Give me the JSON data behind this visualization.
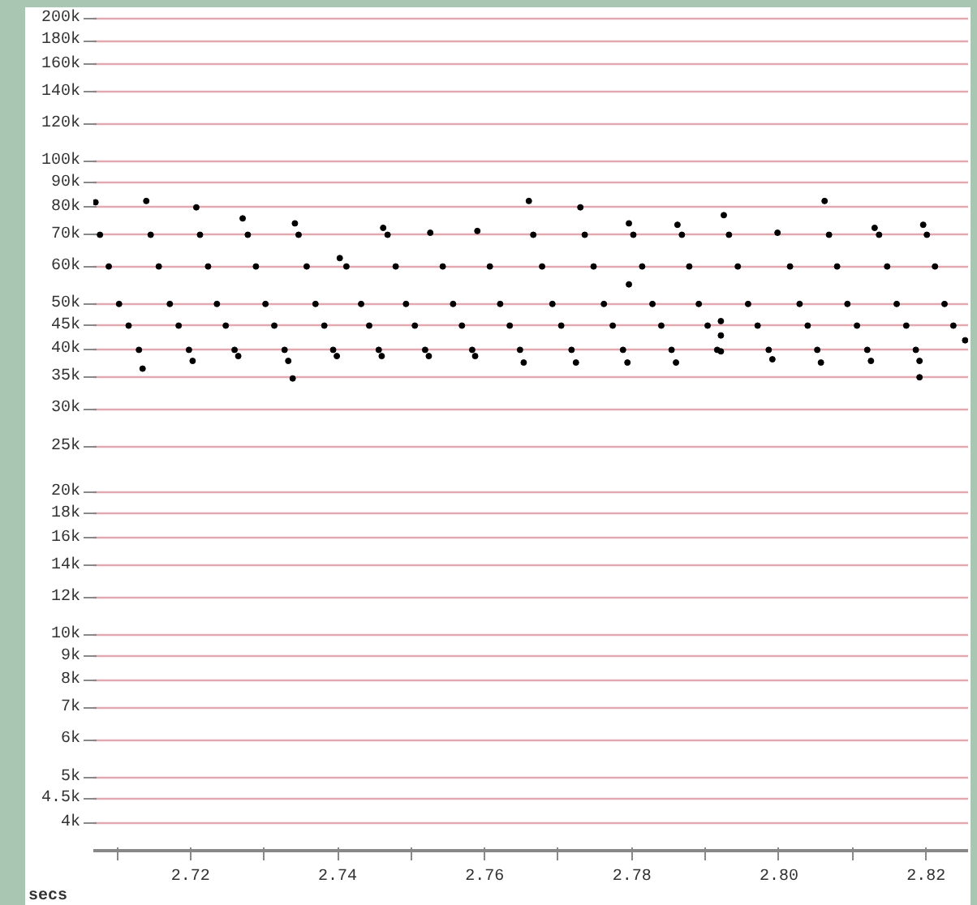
{
  "chart_data": {
    "type": "scatter",
    "xlabel": "secs",
    "log": "y",
    "grid": "y",
    "marker": "circle",
    "xlim": [
      2.7068,
      2.8257
    ],
    "ylim": [
      3500,
      210000
    ],
    "xticks": [
      {
        "value": 2.71,
        "label": null
      },
      2.72,
      {
        "value": 2.73,
        "label": null
      },
      2.74,
      {
        "value": 2.75,
        "label": null
      },
      2.76,
      {
        "value": 2.77,
        "label": null
      },
      2.78,
      {
        "value": 2.79,
        "label": null
      },
      {
        "value": 2.8,
        "label": "2.80"
      },
      {
        "value": 2.81,
        "label": null
      },
      2.82
    ],
    "yticks": [
      {
        "value": 4000,
        "label": "4k"
      },
      {
        "value": 4500,
        "label": "4.5k"
      },
      {
        "value": 5000,
        "label": "5k"
      },
      {
        "value": 6000,
        "label": "6k"
      },
      {
        "value": 7000,
        "label": "7k"
      },
      {
        "value": 8000,
        "label": "8k"
      },
      {
        "value": 9000,
        "label": "9k"
      },
      {
        "value": 10000,
        "label": "10k"
      },
      {
        "value": 12000,
        "label": "12k"
      },
      {
        "value": 14000,
        "label": "14k"
      },
      {
        "value": 16000,
        "label": "16k"
      },
      {
        "value": 18000,
        "label": "18k"
      },
      {
        "value": 20000,
        "label": "20k"
      },
      {
        "value": 25000,
        "label": "25k"
      },
      {
        "value": 30000,
        "label": "30k"
      },
      {
        "value": 35000,
        "label": "35k"
      },
      {
        "value": 40000,
        "label": "40k"
      },
      {
        "value": 45000,
        "label": "45k"
      },
      {
        "value": 50000,
        "label": "50k"
      },
      {
        "value": 60000,
        "label": "60k"
      },
      {
        "value": 70000,
        "label": "70k"
      },
      {
        "value": 80000,
        "label": "80k"
      },
      {
        "value": 90000,
        "label": "90k"
      },
      {
        "value": 100000,
        "label": "100k"
      },
      {
        "value": 120000,
        "label": "120k"
      },
      {
        "value": 140000,
        "label": "140k"
      },
      {
        "value": 160000,
        "label": "160k"
      },
      {
        "value": 180000,
        "label": "180k"
      },
      {
        "value": 200000,
        "label": "200k"
      }
    ],
    "series": [
      {
        "color": "#000000",
        "x": [
          2.7071,
          2.7077,
          2.7089,
          2.7103,
          2.7116,
          2.713,
          2.7135,
          2.714,
          2.7146,
          2.7157,
          2.7172,
          2.7184,
          2.7198,
          2.7203,
          2.7208,
          2.7213,
          2.7224,
          2.7236,
          2.7248,
          2.726,
          2.7265,
          2.7271,
          2.7278,
          2.7289,
          2.7302,
          2.7314,
          2.7328,
          2.7333,
          2.7342,
          2.7347,
          2.7358,
          2.737,
          2.7382,
          2.7394,
          2.7399,
          2.7339,
          2.7403,
          2.7412,
          2.7432,
          2.7443,
          2.7456,
          2.746,
          2.7462,
          2.7468,
          2.7479,
          2.7493,
          2.7505,
          2.7519,
          2.7524,
          2.7526,
          2.7543,
          2.7557,
          2.7569,
          2.7583,
          2.7587,
          2.759,
          2.7607,
          2.7621,
          2.7634,
          2.7648,
          2.7653,
          2.766,
          2.7666,
          2.7678,
          2.7692,
          2.7704,
          2.7718,
          2.7724,
          2.773,
          2.7736,
          2.7748,
          2.7762,
          2.7774,
          2.7788,
          2.7794,
          2.7796,
          2.7802,
          2.7814,
          2.7828,
          2.784,
          2.7854,
          2.786,
          2.7796,
          2.7862,
          2.7868,
          2.7878,
          2.7891,
          2.7903,
          2.7916,
          2.7921,
          2.7921,
          2.7921,
          2.7925,
          2.7932,
          2.7944,
          2.7958,
          2.7971,
          2.7986,
          2.7991,
          2.7998,
          2.8015,
          2.8028,
          2.8039,
          2.8052,
          2.8057,
          2.8062,
          2.8068,
          2.8079,
          2.8093,
          2.8106,
          2.812,
          2.8125,
          2.813,
          2.8136,
          2.8147,
          2.816,
          2.8173,
          2.8186,
          2.8191,
          2.8191,
          2.8196,
          2.8201,
          2.8212,
          2.8225,
          2.8237,
          2.8253
        ],
        "values": [
          82000,
          70000,
          60000,
          50000,
          45000,
          40000,
          36500,
          82500,
          70000,
          60000,
          50000,
          45000,
          40000,
          37900,
          80000,
          70000,
          60000,
          50000,
          45000,
          40000,
          38800,
          75800,
          70000,
          60000,
          50000,
          45000,
          40000,
          37900,
          74000,
          70000,
          60000,
          50000,
          45000,
          40000,
          38800,
          34800,
          62500,
          60000,
          50000,
          45000,
          40000,
          38800,
          72400,
          70000,
          60000,
          50000,
          45000,
          40000,
          38800,
          70700,
          60000,
          50000,
          45000,
          40000,
          38800,
          71300,
          60000,
          50000,
          45000,
          40000,
          37600,
          82500,
          70000,
          60000,
          50000,
          45000,
          40000,
          37600,
          80000,
          70000,
          60000,
          50000,
          45000,
          40000,
          37600,
          74000,
          70000,
          60000,
          50000,
          45000,
          40000,
          37600,
          55000,
          73500,
          70000,
          60000,
          50000,
          45000,
          40000,
          39700,
          46000,
          42900,
          77000,
          70000,
          60000,
          50000,
          45000,
          40000,
          38200,
          70700,
          60000,
          50000,
          45000,
          40000,
          37600,
          82500,
          70000,
          60000,
          50000,
          45000,
          40000,
          37900,
          72400,
          70000,
          60000,
          50000,
          45000,
          40000,
          37900,
          35000,
          73500,
          70000,
          60000,
          50000,
          45000,
          41900
        ]
      }
    ]
  }
}
